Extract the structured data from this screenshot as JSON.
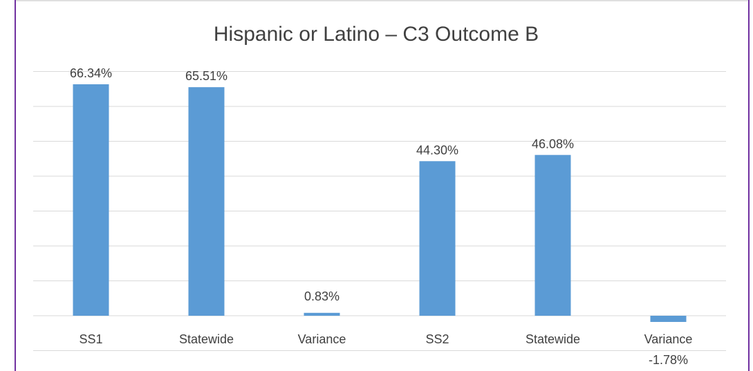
{
  "chart_data": {
    "type": "bar",
    "title": "Hispanic or Latino – C3 Outcome B",
    "categories": [
      "SS1",
      "Statewide",
      "Variance",
      "SS2",
      "Statewide",
      "Variance"
    ],
    "values": [
      66.34,
      65.51,
      0.83,
      44.3,
      46.08,
      -1.78
    ],
    "data_labels": [
      "66.34%",
      "65.51%",
      "0.83%",
      "44.30%",
      "46.08%",
      "-1.78%"
    ],
    "xlabel": "",
    "ylabel": "",
    "ylim": [
      -10,
      70
    ],
    "grid": true,
    "legend": "none",
    "colors": {
      "bar": "#5b9bd5",
      "grid": "#d9d9d9",
      "text": "#404040",
      "border_left": "#7030a0",
      "border_right": "#7030a0",
      "border_top": "#bfbfbf"
    }
  }
}
